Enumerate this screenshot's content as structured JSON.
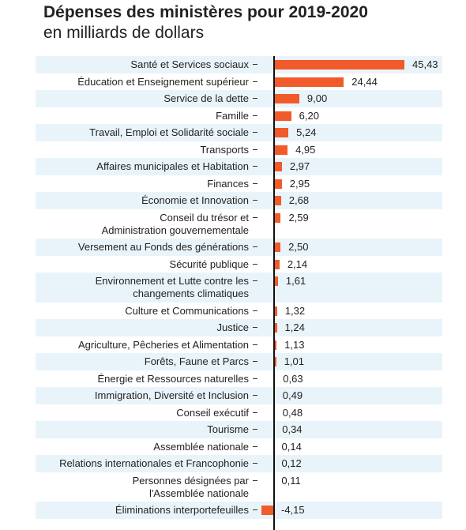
{
  "chart_data": {
    "type": "bar",
    "orientation": "horizontal",
    "title": "Dépenses des ministères pour 2019-2020",
    "subtitle": "en milliards de dollars",
    "color": "#f15a2b",
    "categories": [
      "Santé et Services sociaux",
      "Éducation et Enseignement supérieur",
      "Service de la dette",
      "Famille",
      "Travail, Emploi et Solidarité sociale",
      "Transports",
      "Affaires municipales et Habitation",
      "Finances",
      "Économie et Innovation",
      "Conseil du trésor et\nAdministration gouvernementale",
      "Versement au Fonds des générations",
      "Sécurité publique",
      "Environnement et Lutte contre les\nchangements climatiques",
      "Culture et Communications",
      "Justice",
      "Agriculture, Pêcheries et Alimentation",
      "Forêts, Faune et Parcs",
      "Énergie et Ressources naturelles",
      "Immigration, Diversité et Inclusion",
      "Conseil exécutif",
      "Tourisme",
      "Assemblée nationale",
      "Relations internationales et Francophonie",
      "Personnes désignées par\nl'Assemblée nationale",
      "Éliminations interportefeuilles"
    ],
    "values": [
      45.43,
      24.44,
      9.0,
      6.2,
      5.24,
      4.95,
      2.97,
      2.95,
      2.68,
      2.59,
      2.5,
      2.14,
      1.61,
      1.32,
      1.24,
      1.13,
      1.01,
      0.63,
      0.49,
      0.48,
      0.34,
      0.14,
      0.12,
      0.11,
      -4.15
    ],
    "value_labels": [
      "45,43",
      "24,44",
      "9,00",
      "6,20",
      "5,24",
      "4,95",
      "2,97",
      "2,95",
      "2,68",
      "2,59",
      "2,50",
      "2,14",
      "1,61",
      "1,32",
      "1,24",
      "1,13",
      "1,01",
      "0,63",
      "0,49",
      "0,48",
      "0,34",
      "0,14",
      "0,12",
      "0,11",
      "-4,15"
    ]
  }
}
